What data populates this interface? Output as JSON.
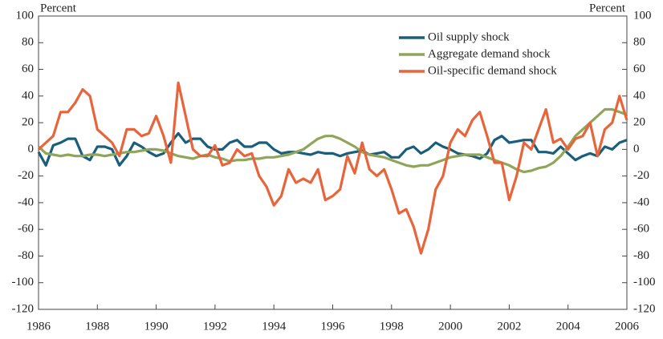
{
  "chart_data": {
    "type": "line",
    "y_label": "Percent",
    "y2_label": "Percent",
    "x": [
      1986,
      1986.25,
      1986.5,
      1986.75,
      1987,
      1987.25,
      1987.5,
      1987.75,
      1988,
      1988.25,
      1988.5,
      1988.75,
      1989,
      1989.25,
      1989.5,
      1989.75,
      1990,
      1990.25,
      1990.5,
      1990.75,
      1991,
      1991.25,
      1991.5,
      1991.75,
      1992,
      1992.25,
      1992.5,
      1992.75,
      1993,
      1993.25,
      1993.5,
      1993.75,
      1994,
      1994.25,
      1994.5,
      1994.75,
      1995,
      1995.25,
      1995.5,
      1995.75,
      1996,
      1996.25,
      1996.5,
      1996.75,
      1997,
      1997.25,
      1997.5,
      1997.75,
      1998,
      1998.25,
      1998.5,
      1998.75,
      1999,
      1999.25,
      1999.5,
      1999.75,
      2000,
      2000.25,
      2000.5,
      2000.75,
      2001,
      2001.25,
      2001.5,
      2001.75,
      2002,
      2002.25,
      2002.5,
      2002.75,
      2003,
      2003.25,
      2003.5,
      2003.75,
      2004,
      2004.25,
      2004.5,
      2004.75,
      2005,
      2005.25,
      2005.5,
      2005.75,
      2006
    ],
    "series": [
      {
        "name": "Oil supply shock",
        "color": "#1b5e7b",
        "values": [
          -2,
          -12,
          3,
          5,
          8,
          8,
          -5,
          -8,
          2,
          2,
          0,
          -12,
          -5,
          5,
          2,
          -2,
          -5,
          -3,
          5,
          12,
          5,
          8,
          8,
          2,
          0,
          0,
          5,
          7,
          2,
          2,
          5,
          5,
          0,
          -3,
          -2,
          -2,
          -3,
          -4,
          -2,
          -3,
          -3,
          -5,
          -3,
          -2,
          -1,
          -4,
          -3,
          -2,
          -6,
          -6,
          0,
          2,
          -3,
          0,
          5,
          2,
          0,
          -3,
          -4,
          -5,
          -7,
          -3,
          7,
          10,
          5,
          6,
          7,
          7,
          -2,
          -2,
          -3,
          2,
          -3,
          -8,
          -5,
          -3,
          -5,
          2,
          0,
          5,
          7
        ]
      },
      {
        "name": "Aggregate demand shock",
        "color": "#8fa55a",
        "values": [
          2,
          -3,
          -4,
          -5,
          -4,
          -5,
          -5,
          -4,
          -4,
          -5,
          -4,
          -3,
          -2,
          -2,
          -1,
          0,
          0,
          -1,
          -3,
          -5,
          -6,
          -7,
          -5,
          -4,
          -6,
          -7,
          -9,
          -8,
          -8,
          -7,
          -7,
          -6,
          -6,
          -5,
          -4,
          -2,
          0,
          4,
          8,
          10,
          10,
          8,
          5,
          2,
          -2,
          -4,
          -5,
          -6,
          -8,
          -10,
          -12,
          -13,
          -12,
          -12,
          -10,
          -8,
          -6,
          -5,
          -4,
          -4,
          -4,
          -6,
          -8,
          -10,
          -12,
          -15,
          -17,
          -16,
          -14,
          -13,
          -10,
          -5,
          2,
          10,
          15,
          20,
          25,
          30,
          30,
          28,
          26
        ]
      },
      {
        "name": "Oil-specific demand shock",
        "color": "#e8643a",
        "values": [
          0,
          5,
          10,
          28,
          28,
          35,
          45,
          40,
          15,
          10,
          5,
          -5,
          15,
          15,
          10,
          12,
          25,
          10,
          -10,
          50,
          25,
          0,
          -5,
          -5,
          3,
          -12,
          -10,
          0,
          -5,
          -3,
          -20,
          -28,
          -42,
          -35,
          -15,
          -25,
          -22,
          -25,
          -15,
          -38,
          -35,
          -30,
          -5,
          -18,
          5,
          -15,
          -20,
          -15,
          -30,
          -48,
          -45,
          -58,
          -78,
          -60,
          -30,
          -20,
          5,
          15,
          10,
          22,
          28,
          10,
          -10,
          -10,
          -38,
          -20,
          5,
          0,
          15,
          30,
          5,
          8,
          0,
          8,
          10,
          20,
          -5,
          15,
          20,
          40,
          22
        ]
      }
    ],
    "xlim": [
      1986,
      2006
    ],
    "xticks": [
      1986,
      1988,
      1990,
      1992,
      1994,
      1996,
      1998,
      2000,
      2002,
      2004,
      2006
    ],
    "ylim": [
      -120,
      100
    ],
    "yticks": [
      -120,
      -100,
      -80,
      -60,
      -40,
      -20,
      0,
      20,
      40,
      60,
      80,
      100
    ],
    "y2lim": [
      -120,
      100
    ],
    "y2ticks": [
      -120,
      -100,
      -80,
      -60,
      -40,
      -20,
      0,
      20,
      40,
      60,
      80,
      100
    ],
    "legend": "top-right"
  }
}
